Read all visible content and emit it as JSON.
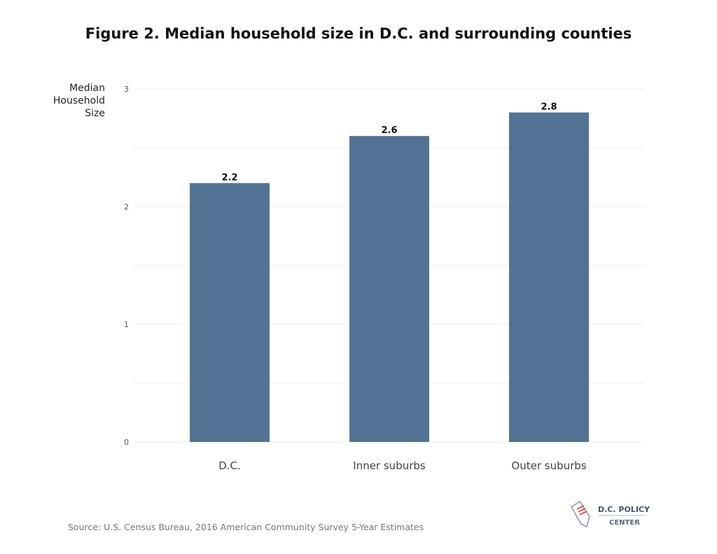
{
  "chart_data": {
    "type": "bar",
    "title": "Figure 2. Median household size in D.C. and surrounding counties",
    "ylabel": [
      "Median",
      "Household",
      "Size"
    ],
    "categories": [
      "D.C.",
      "Inner suburbs",
      "Outer suburbs"
    ],
    "values": [
      2.2,
      2.6,
      2.8
    ],
    "data_labels": [
      "2.2",
      "2.6",
      "2.8"
    ],
    "ylim": [
      0,
      3
    ],
    "yticks": [
      0,
      1,
      2,
      3
    ],
    "grid": true,
    "bar_color": "#527394"
  },
  "source": "Source:  U.S. Census Bureau, 2016 American Community Survey 5-Year Estimates",
  "logo": {
    "line1": "D.C. POLICY",
    "line2": "CENTER"
  }
}
